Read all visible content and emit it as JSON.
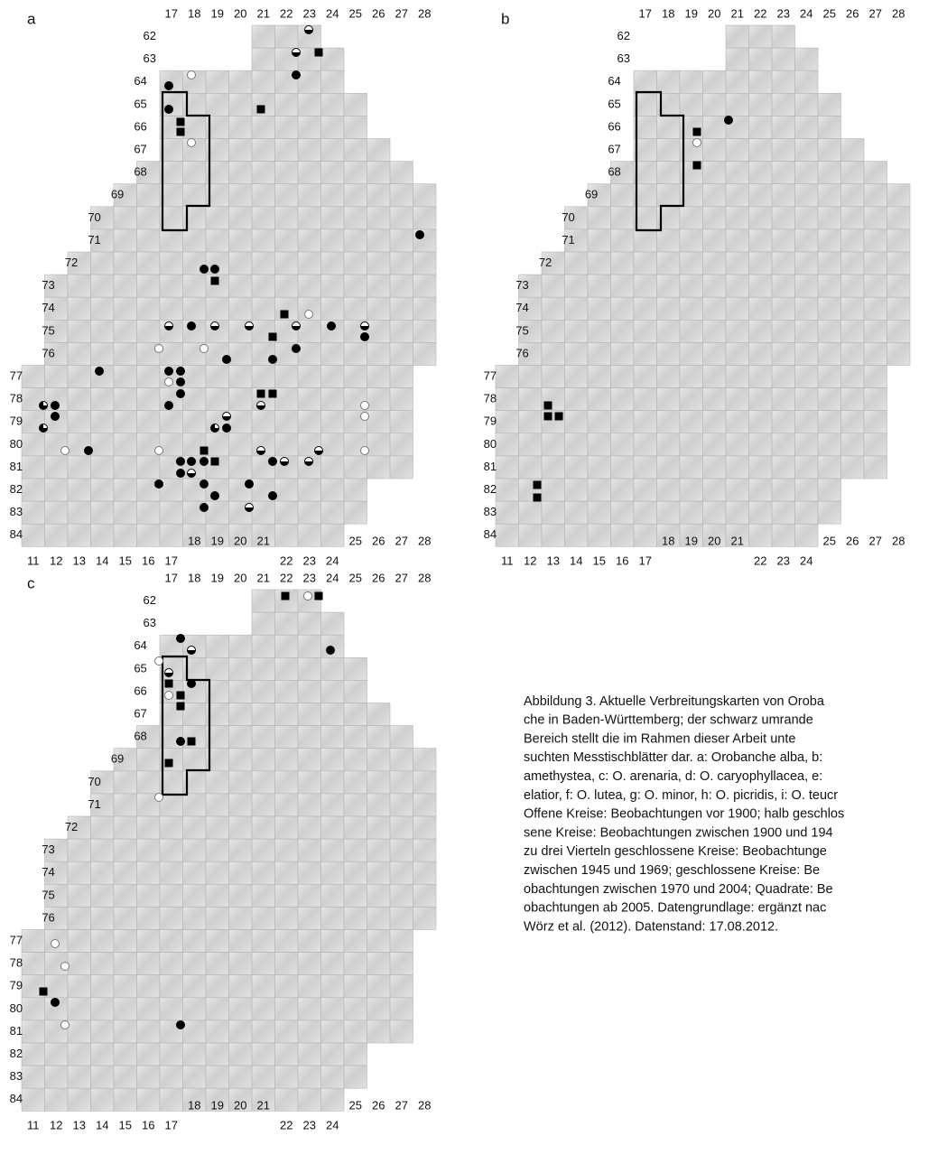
{
  "panels": [
    {
      "label": "a",
      "top_labels": [
        "17",
        "18",
        "19",
        "20",
        "21",
        "22",
        "23",
        "24",
        "25",
        "26",
        "27",
        "28"
      ],
      "left_labels": [
        "62",
        "63",
        "64",
        "65",
        "66",
        "67",
        "68",
        "69",
        "70",
        "71",
        "72",
        "73",
        "74",
        "75",
        "76",
        "77",
        "78",
        "79",
        "80",
        "81",
        "82",
        "83",
        "84"
      ],
      "bottom_labels": [
        "11",
        "12",
        "13",
        "14",
        "15",
        "16",
        "17",
        "18",
        "19",
        "20",
        "21",
        "22",
        "23",
        "24",
        "25",
        "26",
        "27",
        "28"
      ]
    },
    {
      "label": "b",
      "top_labels": [
        "17",
        "18",
        "19",
        "20",
        "21",
        "22",
        "23",
        "24",
        "25",
        "26",
        "27",
        "28"
      ],
      "left_labels": [
        "62",
        "63",
        "64",
        "65",
        "66",
        "67",
        "68",
        "69",
        "70",
        "71",
        "72",
        "73",
        "74",
        "75",
        "76",
        "77",
        "78",
        "79",
        "80",
        "81",
        "82",
        "83",
        "84"
      ],
      "bottom_labels": [
        "11",
        "12",
        "13",
        "14",
        "15",
        "16",
        "17",
        "18",
        "19",
        "20",
        "21",
        "22",
        "23",
        "24",
        "25",
        "26",
        "27",
        "28"
      ]
    },
    {
      "label": "c",
      "top_labels": [
        "17",
        "18",
        "19",
        "20",
        "21",
        "22",
        "23",
        "24",
        "25",
        "26",
        "27",
        "28"
      ],
      "left_labels": [
        "62",
        "63",
        "64",
        "65",
        "66",
        "67",
        "68",
        "69",
        "70",
        "71",
        "72",
        "73",
        "74",
        "75",
        "76",
        "77",
        "78",
        "79",
        "80",
        "81",
        "82",
        "83",
        "84"
      ],
      "bottom_labels": [
        "11",
        "12",
        "13",
        "14",
        "15",
        "16",
        "17",
        "18",
        "19",
        "20",
        "21",
        "22",
        "23",
        "24",
        "25",
        "26",
        "27",
        "28"
      ]
    }
  ],
  "caption": {
    "lines": [
      "Abbildung 3. Aktuelle Verbreitungskarten von Oroba",
      "che in Baden-Württemberg; der schwarz umrande",
      "Bereich stellt die im Rahmen dieser Arbeit unte",
      "suchten Messtischblätter dar. a: Orobanche alba, b:",
      "amethystea, c: O. arenaria, d: O. caryophyllacea, e:",
      "elatior, f: O. lutea, g: O. minor, h: O. picridis, i: O. teucr",
      "Offene Kreise: Beobachtungen vor 1900; halb geschlos",
      "sene Kreise: Beobachtungen zwischen 1900 und 194",
      "zu drei Vierteln geschlossene Kreise: Beobachtunge",
      "zwischen 1945 und 1969; geschlossene Kreise: Be",
      "obachtungen zwischen 1970 und 2004; Quadrate: Be",
      "obachtungen ab 2005. Datengrundlage: ergänzt nac",
      "Wörz et al. (2012). Datenstand: 17.08.2012."
    ]
  }
}
